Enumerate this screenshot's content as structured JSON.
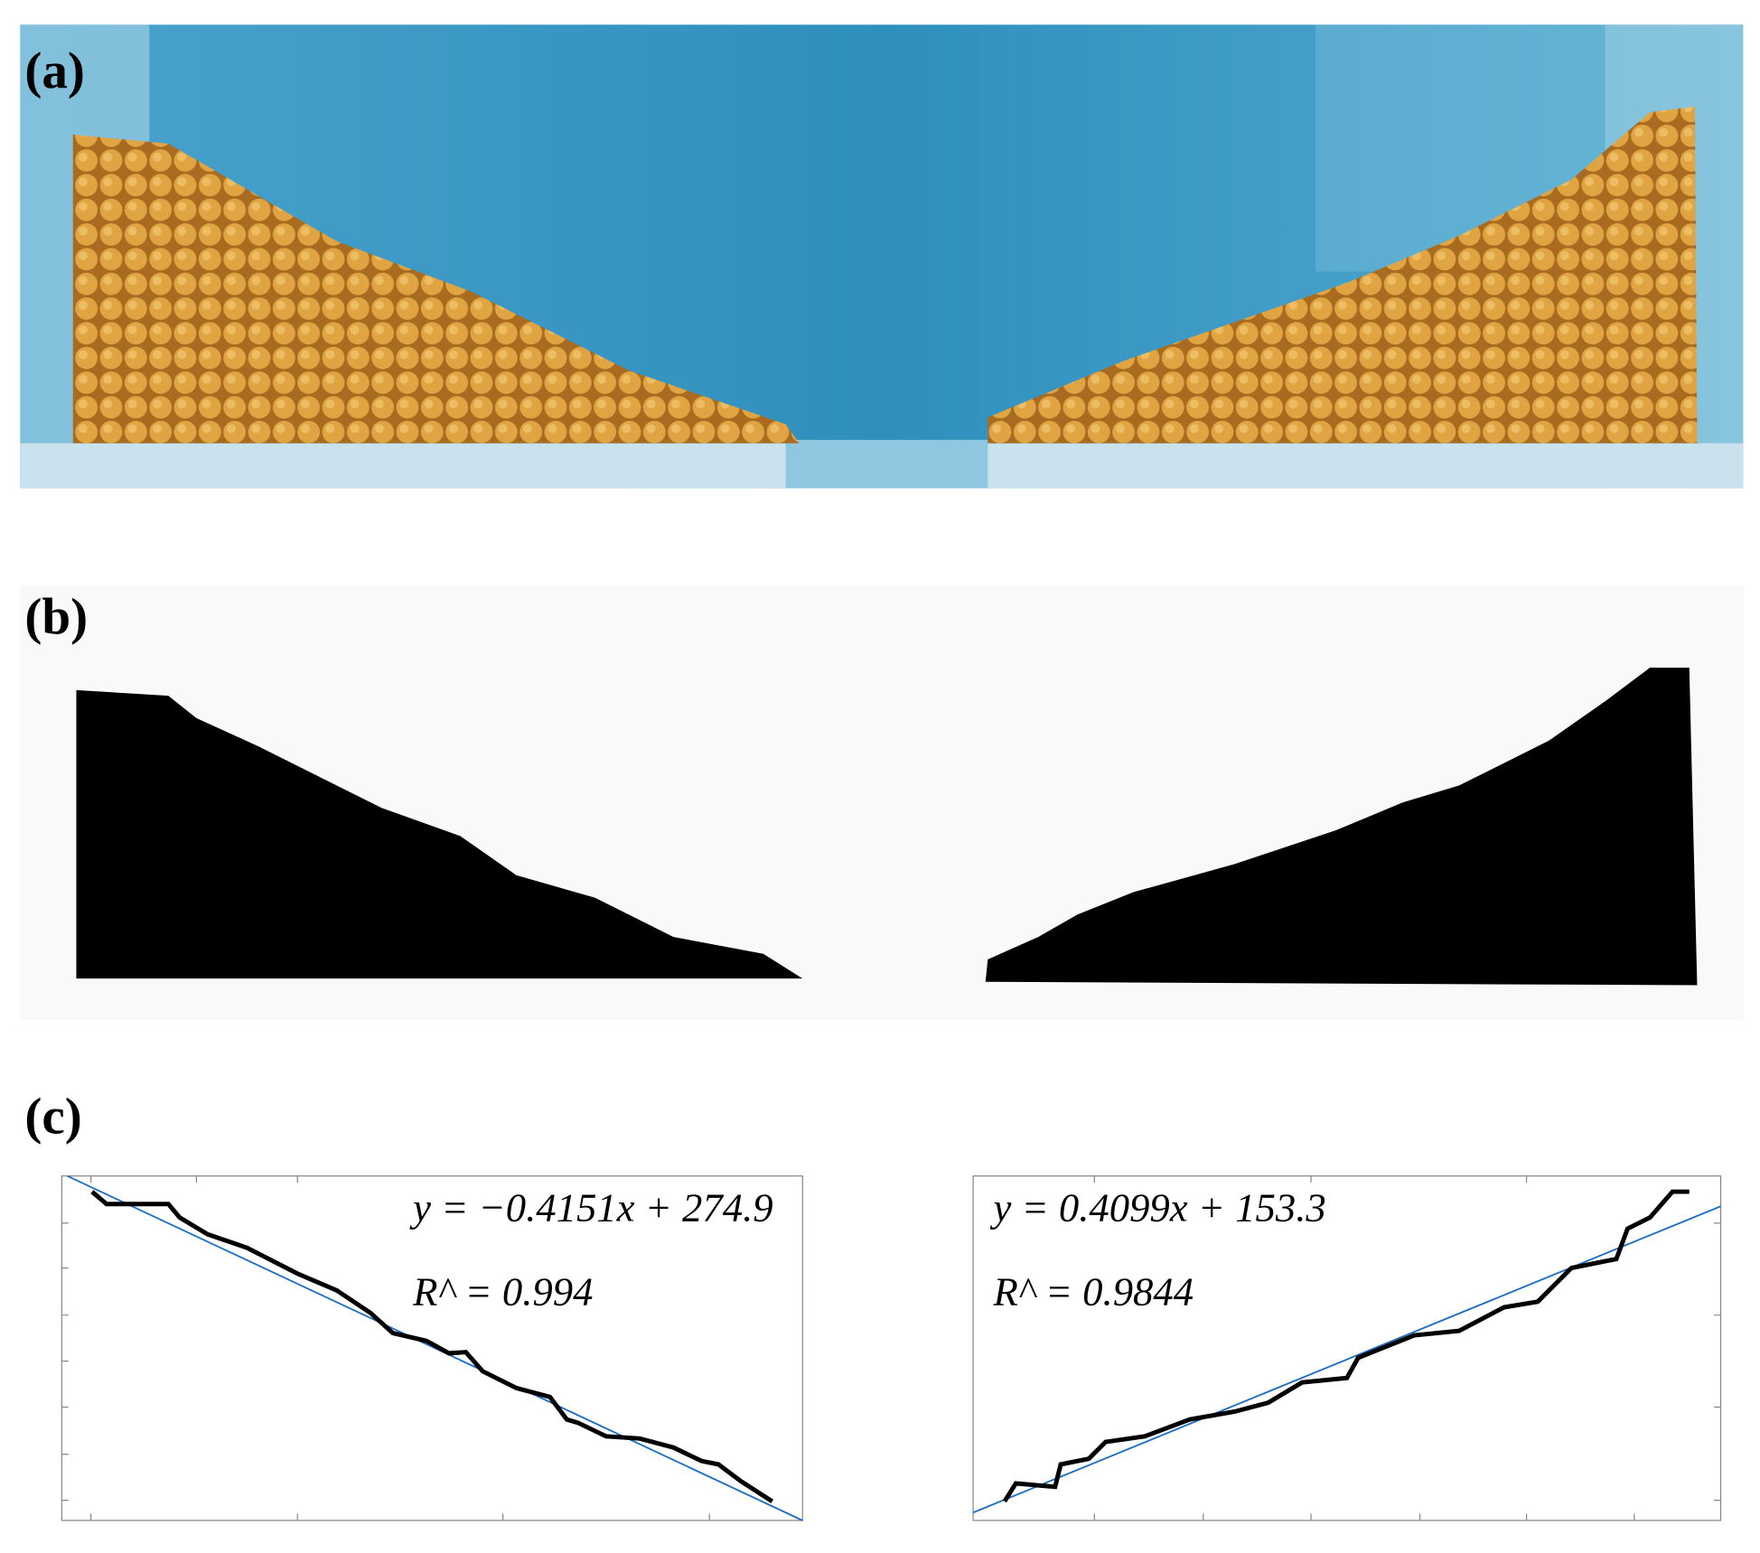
{
  "panels": [
    {
      "label": "(a)"
    },
    {
      "label": "(b)"
    },
    {
      "label": "(c)",
      "plots": [
        {
          "equation": "y = −0.4151x + 274.9",
          "r2": "R^ = 0.994"
        },
        {
          "equation": "y = 0.4099x + 153.3",
          "r2": "R^ = 0.9844"
        }
      ]
    }
  ]
}
